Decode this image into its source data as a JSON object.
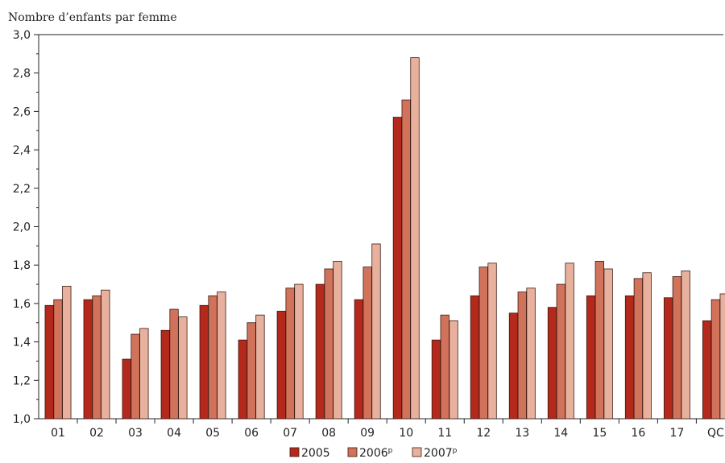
{
  "chart_data": {
    "type": "bar",
    "title": "",
    "ylabel": "Nombre d’enfants par femme",
    "xlabel": "",
    "ylim": [
      1.0,
      3.0
    ],
    "yticks": [
      "1,0",
      "1,2",
      "1,4",
      "1,6",
      "1,8",
      "2,0",
      "2,2",
      "2,4",
      "2,6",
      "2,8",
      "3,0"
    ],
    "categories": [
      "01",
      "02",
      "03",
      "04",
      "05",
      "06",
      "07",
      "08",
      "09",
      "10",
      "11",
      "12",
      "13",
      "14",
      "15",
      "16",
      "17",
      "QC"
    ],
    "series": [
      {
        "name": "2005",
        "sup": "",
        "color": "#b5281c",
        "values": [
          1.59,
          1.62,
          1.31,
          1.46,
          1.59,
          1.41,
          1.56,
          1.7,
          1.62,
          2.57,
          1.41,
          1.64,
          1.55,
          1.58,
          1.64,
          1.64,
          1.63,
          1.51
        ]
      },
      {
        "name": "2006",
        "sup": "p",
        "color": "#d1725a",
        "values": [
          1.62,
          1.64,
          1.44,
          1.57,
          1.64,
          1.5,
          1.68,
          1.78,
          1.79,
          2.66,
          1.54,
          1.79,
          1.66,
          1.7,
          1.82,
          1.73,
          1.74,
          1.62
        ]
      },
      {
        "name": "2007",
        "sup": "p",
        "color": "#e7b19e",
        "values": [
          1.69,
          1.67,
          1.47,
          1.53,
          1.66,
          1.54,
          1.7,
          1.82,
          1.91,
          2.88,
          1.51,
          1.81,
          1.68,
          1.81,
          1.78,
          1.76,
          1.77,
          1.65
        ]
      }
    ],
    "legend_position": "bottom-center",
    "grid": false
  }
}
